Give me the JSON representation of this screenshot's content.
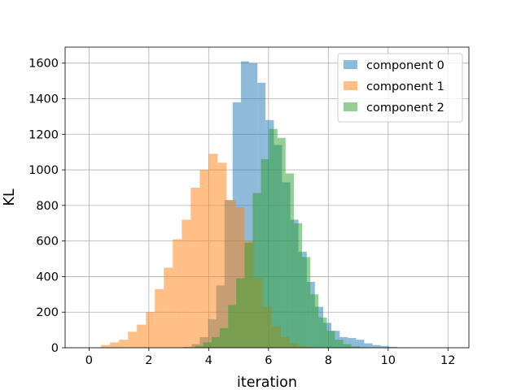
{
  "chart_data": {
    "type": "bar",
    "xlabel": "iteration",
    "ylabel": "KL",
    "xlim": [
      -0.8,
      12.7
    ],
    "ylim": [
      0,
      1690
    ],
    "xticks": [
      0,
      2,
      4,
      6,
      8,
      10,
      12
    ],
    "yticks": [
      0,
      200,
      400,
      600,
      800,
      1000,
      1200,
      1400,
      1600
    ],
    "grid": true,
    "legend_position": "top-right",
    "series": [
      {
        "name": "component 0",
        "color": "#1f77b4",
        "alpha": 0.5,
        "bins": [
          {
            "x0": 3.15,
            "x1": 3.43,
            "count": 5
          },
          {
            "x0": 3.43,
            "x1": 3.7,
            "count": 20
          },
          {
            "x0": 3.7,
            "x1": 3.98,
            "count": 60
          },
          {
            "x0": 3.98,
            "x1": 4.25,
            "count": 160
          },
          {
            "x0": 4.25,
            "x1": 4.53,
            "count": 350
          },
          {
            "x0": 4.53,
            "x1": 4.8,
            "count": 830
          },
          {
            "x0": 4.8,
            "x1": 5.08,
            "count": 1380
          },
          {
            "x0": 5.08,
            "x1": 5.35,
            "count": 1610
          },
          {
            "x0": 5.35,
            "x1": 5.63,
            "count": 1600
          },
          {
            "x0": 5.63,
            "x1": 5.9,
            "count": 1490
          },
          {
            "x0": 5.9,
            "x1": 6.18,
            "count": 1280
          },
          {
            "x0": 6.18,
            "x1": 6.45,
            "count": 1140
          },
          {
            "x0": 6.45,
            "x1": 6.73,
            "count": 930
          },
          {
            "x0": 6.73,
            "x1": 7.0,
            "count": 720
          },
          {
            "x0": 7.0,
            "x1": 7.28,
            "count": 540
          },
          {
            "x0": 7.28,
            "x1": 7.55,
            "count": 370
          },
          {
            "x0": 7.55,
            "x1": 7.83,
            "count": 230
          },
          {
            "x0": 7.83,
            "x1": 8.1,
            "count": 140
          },
          {
            "x0": 8.1,
            "x1": 8.38,
            "count": 95
          },
          {
            "x0": 8.38,
            "x1": 8.65,
            "count": 60
          },
          {
            "x0": 8.65,
            "x1": 8.93,
            "count": 55
          },
          {
            "x0": 8.93,
            "x1": 9.2,
            "count": 45
          },
          {
            "x0": 9.2,
            "x1": 9.48,
            "count": 25
          },
          {
            "x0": 9.48,
            "x1": 9.75,
            "count": 15
          },
          {
            "x0": 9.75,
            "x1": 10.03,
            "count": 10
          },
          {
            "x0": 10.03,
            "x1": 10.3,
            "count": 5
          },
          {
            "x0": 10.3,
            "x1": 10.58,
            "count": 2
          },
          {
            "x0": 10.58,
            "x1": 10.85,
            "count": 1
          }
        ]
      },
      {
        "name": "component 1",
        "color": "#ff7f0e",
        "alpha": 0.5,
        "bins": [
          {
            "x0": 0.4,
            "x1": 0.7,
            "count": 15
          },
          {
            "x0": 0.7,
            "x1": 1.0,
            "count": 30
          },
          {
            "x0": 1.0,
            "x1": 1.3,
            "count": 45
          },
          {
            "x0": 1.3,
            "x1": 1.6,
            "count": 90
          },
          {
            "x0": 1.6,
            "x1": 1.9,
            "count": 130
          },
          {
            "x0": 1.9,
            "x1": 2.2,
            "count": 200
          },
          {
            "x0": 2.2,
            "x1": 2.5,
            "count": 330
          },
          {
            "x0": 2.5,
            "x1": 2.8,
            "count": 450
          },
          {
            "x0": 2.8,
            "x1": 3.1,
            "count": 610
          },
          {
            "x0": 3.1,
            "x1": 3.4,
            "count": 720
          },
          {
            "x0": 3.4,
            "x1": 3.7,
            "count": 900
          },
          {
            "x0": 3.7,
            "x1": 4.0,
            "count": 1000
          },
          {
            "x0": 4.0,
            "x1": 4.3,
            "count": 1090
          },
          {
            "x0": 4.3,
            "x1": 4.6,
            "count": 1040
          },
          {
            "x0": 4.6,
            "x1": 4.9,
            "count": 830
          },
          {
            "x0": 4.9,
            "x1": 5.2,
            "count": 790
          },
          {
            "x0": 5.2,
            "x1": 5.5,
            "count": 600
          },
          {
            "x0": 5.5,
            "x1": 5.8,
            "count": 390
          },
          {
            "x0": 5.8,
            "x1": 6.1,
            "count": 230
          },
          {
            "x0": 6.1,
            "x1": 6.4,
            "count": 120
          },
          {
            "x0": 6.4,
            "x1": 6.7,
            "count": 60
          },
          {
            "x0": 6.7,
            "x1": 7.0,
            "count": 25
          },
          {
            "x0": 7.0,
            "x1": 7.3,
            "count": 10
          },
          {
            "x0": 7.3,
            "x1": 7.6,
            "count": 4
          },
          {
            "x0": 7.6,
            "x1": 7.9,
            "count": 2
          }
        ]
      },
      {
        "name": "component 2",
        "color": "#2ca02c",
        "alpha": 0.5,
        "bins": [
          {
            "x0": 3.55,
            "x1": 3.82,
            "count": 10
          },
          {
            "x0": 3.82,
            "x1": 4.1,
            "count": 30
          },
          {
            "x0": 4.1,
            "x1": 4.37,
            "count": 60
          },
          {
            "x0": 4.37,
            "x1": 4.65,
            "count": 110
          },
          {
            "x0": 4.65,
            "x1": 4.92,
            "count": 240
          },
          {
            "x0": 4.92,
            "x1": 5.2,
            "count": 390
          },
          {
            "x0": 5.2,
            "x1": 5.47,
            "count": 590
          },
          {
            "x0": 5.47,
            "x1": 5.75,
            "count": 870
          },
          {
            "x0": 5.75,
            "x1": 6.02,
            "count": 1060
          },
          {
            "x0": 6.02,
            "x1": 6.3,
            "count": 1230
          },
          {
            "x0": 6.3,
            "x1": 6.57,
            "count": 1180
          },
          {
            "x0": 6.57,
            "x1": 6.85,
            "count": 980
          },
          {
            "x0": 6.85,
            "x1": 7.12,
            "count": 700
          },
          {
            "x0": 7.12,
            "x1": 7.4,
            "count": 510
          },
          {
            "x0": 7.4,
            "x1": 7.67,
            "count": 300
          },
          {
            "x0": 7.67,
            "x1": 7.95,
            "count": 170
          },
          {
            "x0": 7.95,
            "x1": 8.22,
            "count": 95
          },
          {
            "x0": 8.22,
            "x1": 8.5,
            "count": 45
          },
          {
            "x0": 8.5,
            "x1": 8.77,
            "count": 20
          },
          {
            "x0": 8.77,
            "x1": 9.05,
            "count": 8
          },
          {
            "x0": 9.05,
            "x1": 9.32,
            "count": 3
          }
        ]
      }
    ]
  }
}
